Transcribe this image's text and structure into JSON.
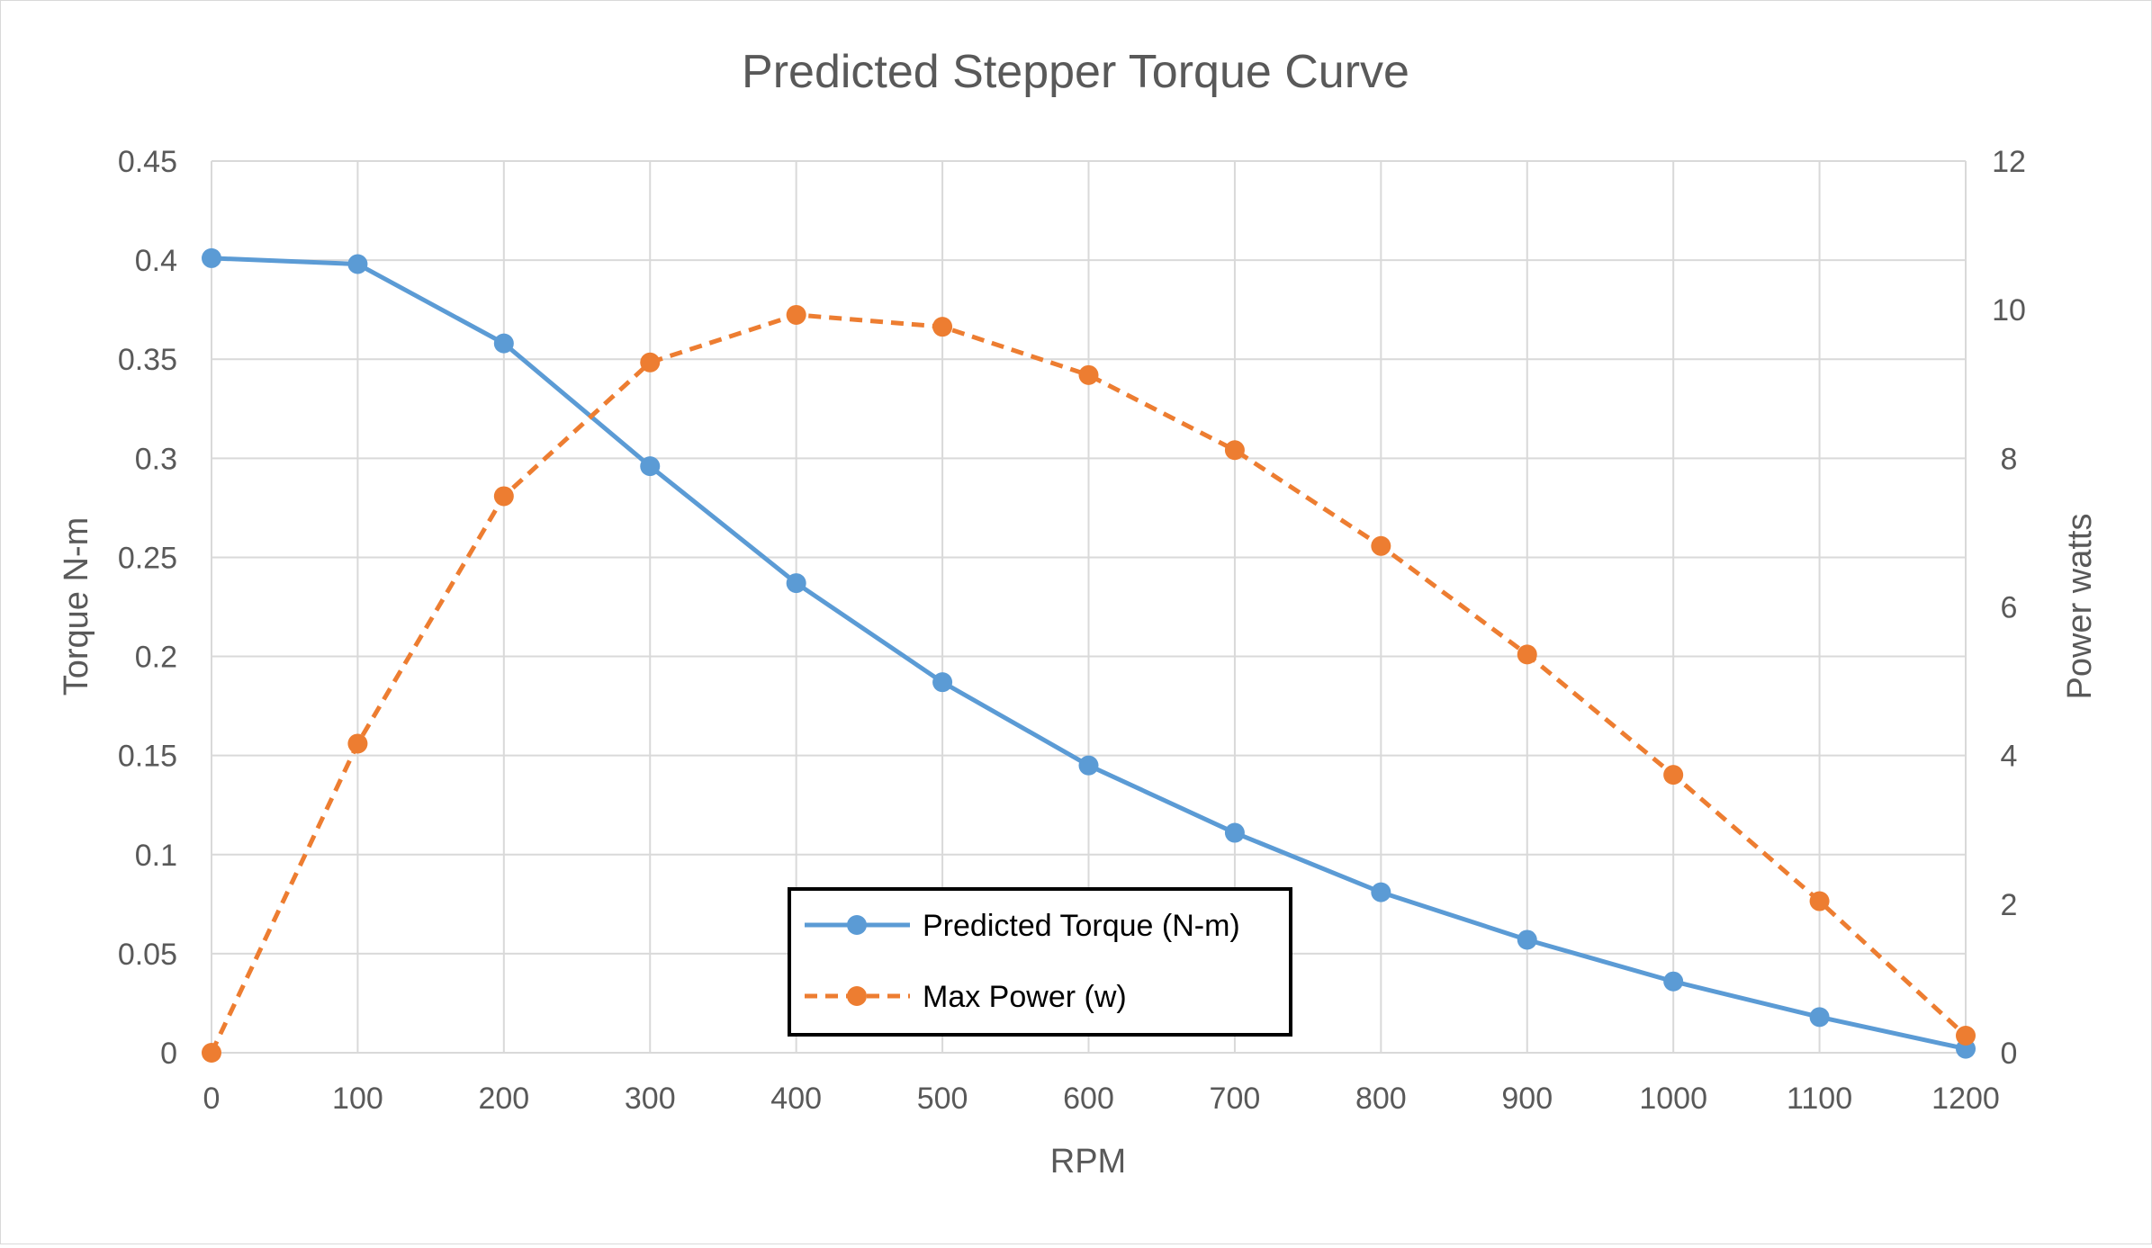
{
  "chart_data": {
    "type": "line",
    "title": "Predicted Stepper Torque Curve",
    "xlabel": "RPM",
    "ylabel": "Torque N-m",
    "y2label": "Power watts",
    "x": [
      0,
      100,
      200,
      300,
      400,
      500,
      600,
      700,
      800,
      900,
      1000,
      1100,
      1200
    ],
    "xlim": [
      0,
      1200
    ],
    "xticks": [
      0,
      100,
      200,
      300,
      400,
      500,
      600,
      700,
      800,
      900,
      1000,
      1100,
      1200
    ],
    "ylim": [
      0,
      0.45
    ],
    "yticks": [
      "0",
      "0.05",
      "0.1",
      "0.15",
      "0.2",
      "0.25",
      "0.3",
      "0.35",
      "0.4",
      "0.45"
    ],
    "y2lim": [
      0,
      12
    ],
    "y2ticks": [
      "0",
      "2",
      "4",
      "6",
      "8",
      "10",
      "12"
    ],
    "grid": true,
    "legend_position": "bottom-center",
    "series": [
      {
        "name": "Predicted Torque (N-m)",
        "axis": "left",
        "color": "#5b9bd5",
        "dash": "solid",
        "values": [
          0.401,
          0.398,
          0.358,
          0.296,
          0.237,
          0.187,
          0.145,
          0.111,
          0.081,
          0.057,
          0.036,
          0.018,
          0.002
        ]
      },
      {
        "name": "Max Power (w)",
        "axis": "right",
        "color": "#ed7d31",
        "dash": "dashed",
        "values": [
          0,
          4.16,
          7.49,
          9.29,
          9.93,
          9.77,
          9.12,
          8.11,
          6.82,
          5.36,
          3.74,
          2.04,
          0.23
        ]
      }
    ]
  }
}
